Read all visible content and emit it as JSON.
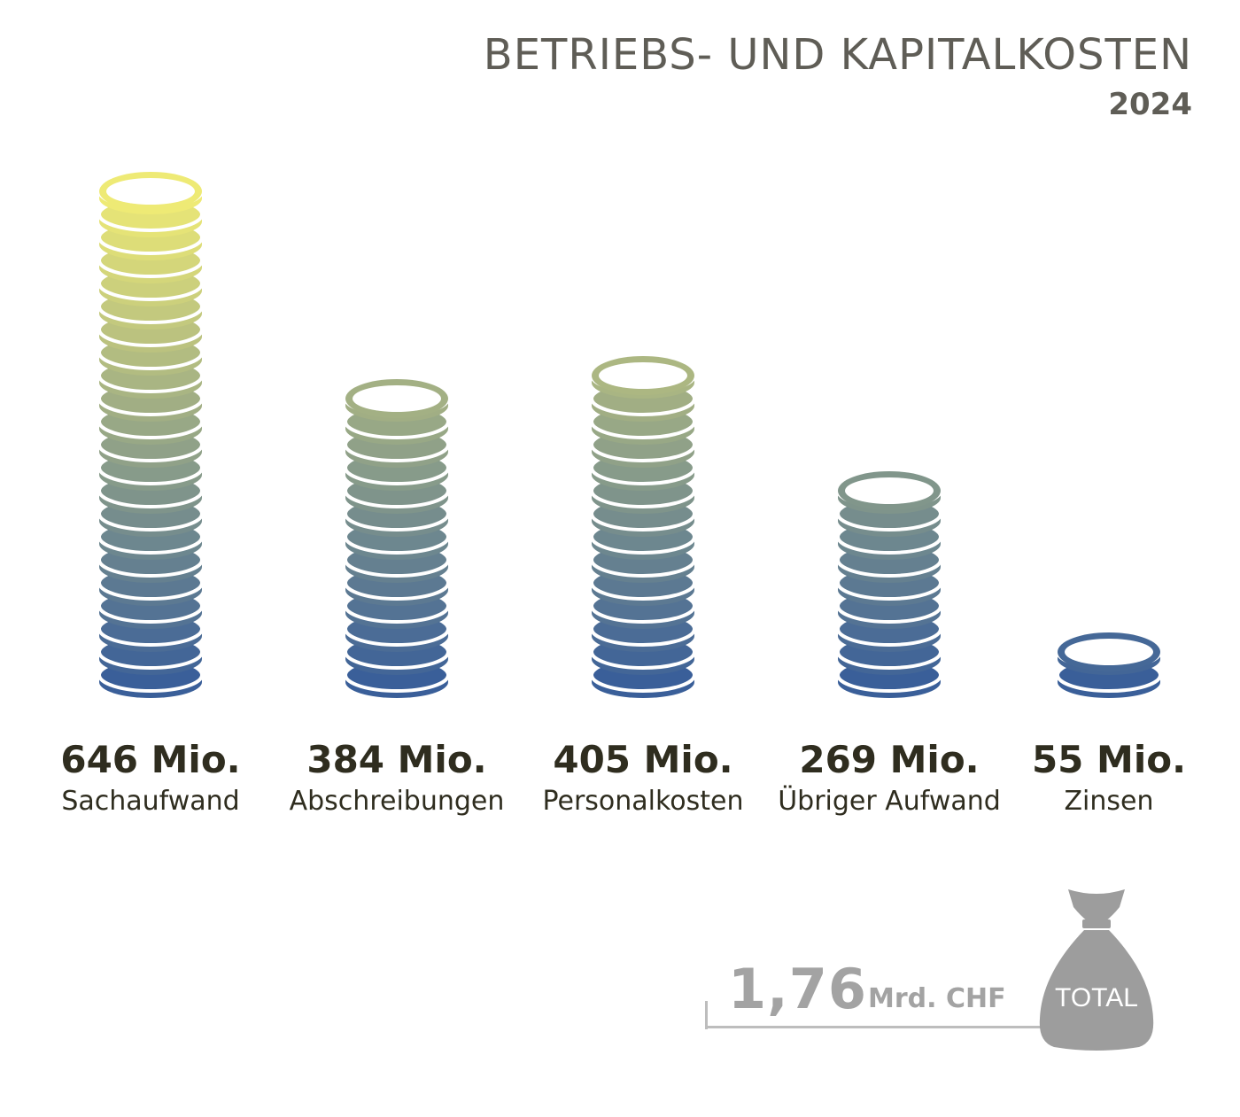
{
  "header": {
    "title": "BETRIEBS- UND KAPITALKOSTEN",
    "year": "2024"
  },
  "chart_data": {
    "type": "bar",
    "title": "BETRIEBS- UND KAPITALKOSTEN",
    "subtitle": "2024",
    "categories": [
      "Sachaufwand",
      "Abschreibungen",
      "Personalkosten",
      "Übriger Aufwand",
      "Zinsen"
    ],
    "values": [
      646,
      384,
      405,
      269,
      55
    ],
    "value_labels": [
      "646 Mio.",
      "384 Mio.",
      "405 Mio.",
      "269 Mio.",
      "55 Mio."
    ],
    "unit": "Mio.",
    "style": "coin-stacks",
    "colors": {
      "top": "#eeea75",
      "bottom": "#3a5f99",
      "outline": "#ffffff"
    }
  },
  "total": {
    "value": "1,76",
    "unit": "Mrd. CHF",
    "bag_label": "TOTAL",
    "bag_color": "#9d9d9d"
  }
}
